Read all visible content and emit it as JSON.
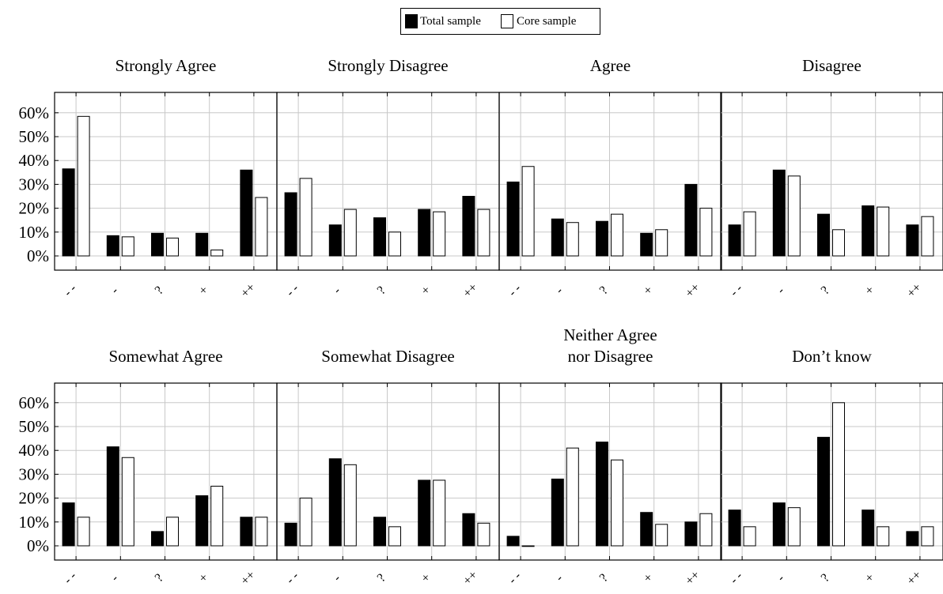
{
  "legend": [
    {
      "name": "Total sample",
      "color": "#000000"
    },
    {
      "name": "Core sample",
      "color": "#ffffff"
    }
  ],
  "chart_data": {
    "type": "bar",
    "categories": [
      "- -",
      "-",
      "?",
      "+",
      "++"
    ],
    "ylim": [
      -6,
      70
    ],
    "yticks": [
      0,
      10,
      20,
      30,
      40,
      50,
      60
    ],
    "ytick_labels": [
      "0%",
      "10%",
      "20%",
      "30%",
      "40%",
      "50%",
      "60%"
    ],
    "grid": true,
    "legend_position": "top-center",
    "panels": [
      {
        "title": [
          "Strongly Agree"
        ],
        "series": [
          {
            "name": "Total sample",
            "values": [
              36.5,
              8.5,
              9.5,
              9.5,
              36
            ]
          },
          {
            "name": "Core sample",
            "values": [
              58.5,
              8,
              7.5,
              2.5,
              24.5
            ]
          }
        ]
      },
      {
        "title": [
          "Strongly Disagree"
        ],
        "series": [
          {
            "name": "Total sample",
            "values": [
              26.5,
              13,
              16,
              19.5,
              25
            ]
          },
          {
            "name": "Core sample",
            "values": [
              32.5,
              19.5,
              10,
              18.5,
              19.5
            ]
          }
        ]
      },
      {
        "title": [
          "Agree"
        ],
        "series": [
          {
            "name": "Total sample",
            "values": [
              31,
              15.5,
              14.5,
              9.5,
              30
            ]
          },
          {
            "name": "Core sample",
            "values": [
              37.5,
              14,
              17.5,
              11,
              20
            ]
          }
        ]
      },
      {
        "title": [
          "Disagree"
        ],
        "series": [
          {
            "name": "Total sample",
            "values": [
              13,
              36,
              17.5,
              21,
              13
            ]
          },
          {
            "name": "Core sample",
            "values": [
              18.5,
              33.5,
              11,
              20.5,
              16.5
            ]
          }
        ]
      },
      {
        "title": [
          "Somewhat Agree"
        ],
        "series": [
          {
            "name": "Total sample",
            "values": [
              18,
              41.5,
              6,
              21,
              12
            ]
          },
          {
            "name": "Core sample",
            "values": [
              12,
              37,
              12,
              25,
              12
            ]
          }
        ]
      },
      {
        "title": [
          "Somewhat Disagree"
        ],
        "series": [
          {
            "name": "Total sample",
            "values": [
              9.5,
              36.5,
              12,
              27.5,
              13.5
            ]
          },
          {
            "name": "Core sample",
            "values": [
              20,
              34,
              8,
              27.5,
              9.5
            ]
          }
        ]
      },
      {
        "title": [
          "Neither Agree",
          "nor Disagree"
        ],
        "series": [
          {
            "name": "Total sample",
            "values": [
              4,
              28,
              43.5,
              14,
              10
            ]
          },
          {
            "name": "Core sample",
            "values": [
              0,
              41,
              36,
              9,
              13.5
            ]
          }
        ]
      },
      {
        "title": [
          "Don’t know"
        ],
        "series": [
          {
            "name": "Total sample",
            "values": [
              15,
              18,
              45.5,
              15,
              6
            ]
          },
          {
            "name": "Core sample",
            "values": [
              8,
              16,
              60,
              8,
              8
            ]
          }
        ]
      }
    ]
  }
}
